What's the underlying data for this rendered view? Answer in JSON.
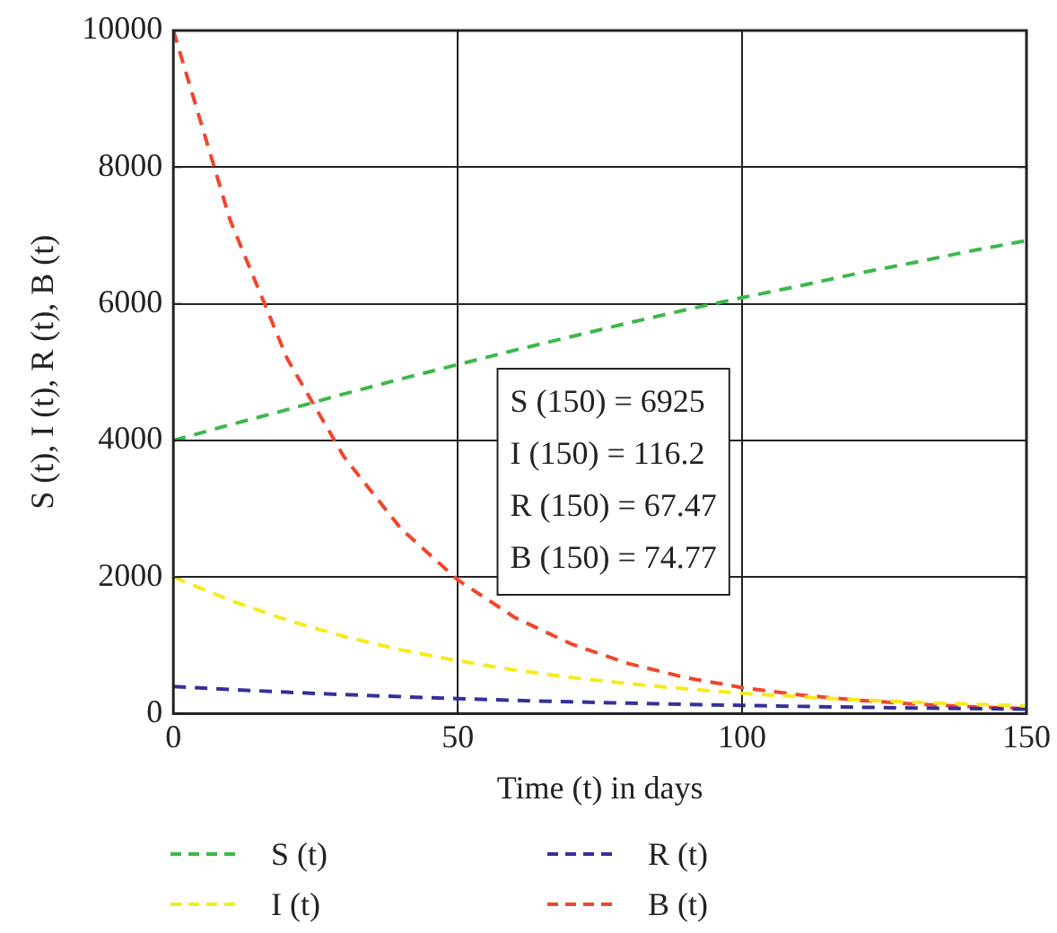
{
  "chart_data": {
    "type": "line",
    "xlabel": "Time (t) in days",
    "ylabel": "S (t), I (t), R (t), B (t)",
    "x": [
      0,
      10,
      20,
      30,
      40,
      50,
      60,
      70,
      80,
      90,
      100,
      110,
      120,
      130,
      140,
      150
    ],
    "series": [
      {
        "name": "S (t)",
        "color": "#3cb84a",
        "values": [
          4000,
          4230,
          4450,
          4680,
          4900,
          5110,
          5320,
          5520,
          5720,
          5910,
          6090,
          6260,
          6440,
          6600,
          6770,
          6925
        ]
      },
      {
        "name": "I (t)",
        "color": "#f5eb1e",
        "values": [
          2000,
          1660,
          1370,
          1130,
          935,
          775,
          640,
          530,
          440,
          365,
          300,
          250,
          205,
          170,
          140,
          116.2
        ]
      },
      {
        "name": "R (t)",
        "color": "#35309a",
        "values": [
          400,
          355,
          315,
          280,
          250,
          221,
          196,
          174,
          155,
          137,
          122,
          108,
          96,
          85,
          76,
          67.47
        ]
      },
      {
        "name": "B (t)",
        "color": "#f0462d",
        "values": [
          10000,
          7220,
          5200,
          3760,
          2710,
          1960,
          1410,
          1020,
          735,
          530,
          383,
          277,
          200,
          144,
          104,
          74.77
        ]
      }
    ],
    "xlim": [
      0,
      150
    ],
    "xticks": [
      0,
      50,
      100,
      150
    ],
    "ylim": [
      0,
      10000
    ],
    "yticks": [
      0,
      2000,
      4000,
      6000,
      8000,
      10000
    ],
    "annotations": [
      "S (150) = 6925",
      "I (150) = 116.2",
      "R (150) = 67.47",
      "B (150) = 74.77"
    ],
    "grid": true,
    "legend": "bottom",
    "marker": "none",
    "line_style": "dashed"
  }
}
